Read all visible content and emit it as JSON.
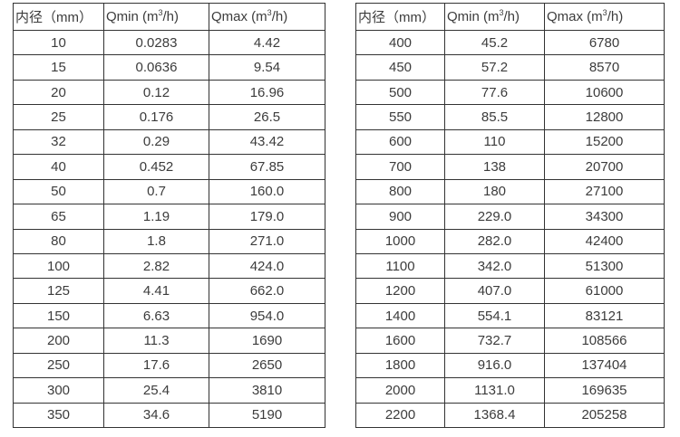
{
  "colors": {
    "border": "#333333",
    "text": "#3c3c3c",
    "background": "#ffffff"
  },
  "tables": [
    {
      "name": "flow-spec-table-dn10-350",
      "headers": [
        {
          "pre": "内径（mm）",
          "sup": "",
          "post": ""
        },
        {
          "pre": "Qmin (m",
          "sup": "3",
          "post": "/h)"
        },
        {
          "pre": "Qmax (m",
          "sup": "3",
          "post": "/h)"
        }
      ],
      "rows": [
        [
          "10",
          "0.0283",
          "4.42"
        ],
        [
          "15",
          "0.0636",
          "9.54"
        ],
        [
          "20",
          "0.12",
          "16.96"
        ],
        [
          "25",
          "0.176",
          "26.5"
        ],
        [
          "32",
          "0.29",
          "43.42"
        ],
        [
          "40",
          "0.452",
          "67.85"
        ],
        [
          "50",
          "0.7",
          "160.0"
        ],
        [
          "65",
          "1.19",
          "179.0"
        ],
        [
          "80",
          "1.8",
          "271.0"
        ],
        [
          "100",
          "2.82",
          "424.0"
        ],
        [
          "125",
          "4.41",
          "662.0"
        ],
        [
          "150",
          "6.63",
          "954.0"
        ],
        [
          "200",
          "11.3",
          "1690"
        ],
        [
          "250",
          "17.6",
          "2650"
        ],
        [
          "300",
          "25.4",
          "3810"
        ],
        [
          "350",
          "34.6",
          "5190"
        ]
      ]
    },
    {
      "name": "flow-spec-table-dn400-2200",
      "headers": [
        {
          "pre": "内径（mm）",
          "sup": "",
          "post": ""
        },
        {
          "pre": "Qmin (m",
          "sup": "3",
          "post": "/h)"
        },
        {
          "pre": "Qmax (m",
          "sup": "3",
          "post": "/h)"
        }
      ],
      "rows": [
        [
          "400",
          "45.2",
          "6780"
        ],
        [
          "450",
          "57.2",
          "8570"
        ],
        [
          "500",
          "77.6",
          "10600"
        ],
        [
          "550",
          "85.5",
          "12800"
        ],
        [
          "600",
          "110",
          "15200"
        ],
        [
          "700",
          "138",
          "20700"
        ],
        [
          "800",
          "180",
          "27100"
        ],
        [
          "900",
          "229.0",
          "34300"
        ],
        [
          "1000",
          "282.0",
          "42400"
        ],
        [
          "1100",
          "342.0",
          "51300"
        ],
        [
          "1200",
          "407.0",
          "61000"
        ],
        [
          "1400",
          "554.1",
          "83121"
        ],
        [
          "1600",
          "732.7",
          "108566"
        ],
        [
          "1800",
          "916.0",
          "137404"
        ],
        [
          "2000",
          "1131.0",
          "169635"
        ],
        [
          "2200",
          "1368.4",
          "205258"
        ]
      ]
    }
  ]
}
